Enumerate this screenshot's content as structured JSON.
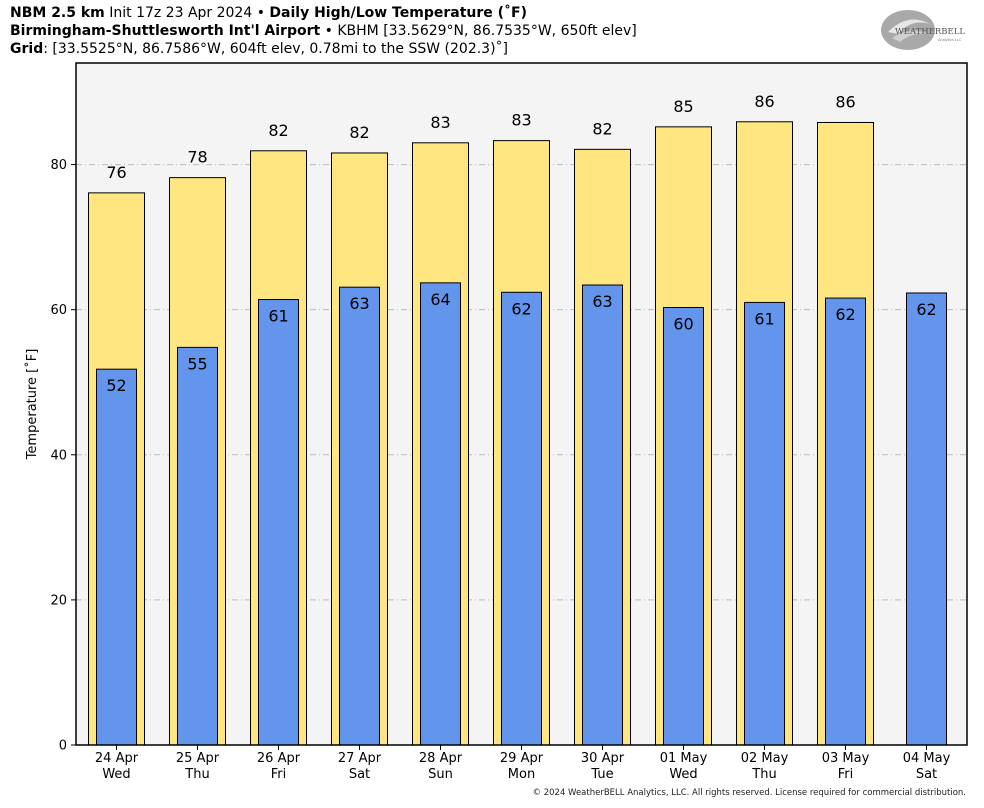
{
  "header": {
    "line1_bold": "NBM 2.5 km",
    "line1_mid": "Init 17z 23 Apr 2024",
    "line1_sep": "•",
    "line1_title": "Daily High/Low Temperature (˚F)",
    "line2_bold": "Birmingham-Shuttlesworth Int'l Airport",
    "line2_sep": "•",
    "line2_rest": "KBHM [33.5629°N, 86.7535°W, 650ft elev]",
    "line3_bold": "Grid",
    "line3_rest": ": [33.5525°N, 86.7586°W, 604ft elev, 0.78mi to the SSW (202.3)˚]"
  },
  "logo": {
    "text_main": "WEATHERBELL",
    "text_sub": "Analytics LLC"
  },
  "copyright": "© 2024 WeatherBELL Analytics, LLC. All rights reserved. License required for commercial distribution.",
  "colors": {
    "high": "#ffe680",
    "low": "#6495ed",
    "plot_bg": "#f4f4f4",
    "grid": "#bbbbbb"
  },
  "chart_data": {
    "type": "bar",
    "ylabel": "Temperature [˚F]",
    "ylim": [
      0,
      94
    ],
    "yticks": [
      0,
      20,
      40,
      60,
      80
    ],
    "grid": true,
    "categories": [
      [
        "24 Apr",
        "Wed"
      ],
      [
        "25 Apr",
        "Thu"
      ],
      [
        "26 Apr",
        "Fri"
      ],
      [
        "27 Apr",
        "Sat"
      ],
      [
        "28 Apr",
        "Sun"
      ],
      [
        "29 Apr",
        "Mon"
      ],
      [
        "30 Apr",
        "Tue"
      ],
      [
        "01 May",
        "Wed"
      ],
      [
        "02 May",
        "Thu"
      ],
      [
        "03 May",
        "Fri"
      ],
      [
        "04 May",
        "Sat"
      ]
    ],
    "series": [
      {
        "values": [
          76.1,
          78.2,
          81.9,
          81.6,
          83.0,
          83.3,
          82.1,
          85.2,
          85.9,
          85.8,
          null
        ],
        "labels": [
          "76",
          "78",
          "82",
          "82",
          "83",
          "83",
          "82",
          "85",
          "86",
          "86",
          ""
        ]
      },
      {
        "values": [
          51.8,
          54.8,
          61.4,
          63.1,
          63.7,
          62.4,
          63.4,
          60.3,
          61.0,
          61.6,
          62.3
        ],
        "labels": [
          "52",
          "55",
          "61",
          "63",
          "64",
          "62",
          "63",
          "60",
          "61",
          "62",
          "62"
        ]
      }
    ]
  }
}
